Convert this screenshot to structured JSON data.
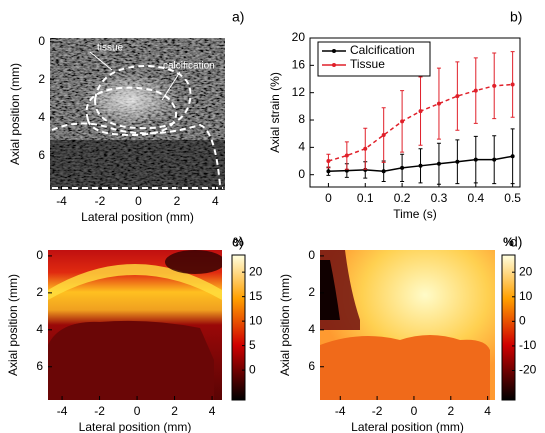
{
  "chart_data": [
    {
      "type": "image",
      "panel": "a)",
      "xlabel": "Lateral position (mm)",
      "ylabel": "Axial position (mm)",
      "xlim": [
        -4.6,
        4.5
      ],
      "xticks": [
        -4,
        -2,
        0,
        2,
        4
      ],
      "ylim": [
        -0.2,
        7.8
      ],
      "yticks": [
        0,
        2,
        4,
        6
      ],
      "yreverse": true,
      "annotations": [
        "tissue",
        "calcification"
      ]
    },
    {
      "type": "line",
      "panel": "b)",
      "xlabel": "Time (s)",
      "ylabel": "Axial strain (%)",
      "xlim": [
        -0.05,
        0.52
      ],
      "xticks": [
        0,
        0.1,
        0.2,
        0.3,
        0.4,
        0.5
      ],
      "ylim": [
        -1.8,
        20
      ],
      "yticks": [
        0,
        4,
        8,
        12,
        16,
        20
      ],
      "legend": "upper left",
      "x": [
        0,
        0.05,
        0.1,
        0.15,
        0.2,
        0.25,
        0.3,
        0.35,
        0.4,
        0.45,
        0.5
      ],
      "series": [
        {
          "name": "Calcification",
          "color": "#000000",
          "values": [
            0.5,
            0.6,
            0.7,
            0.5,
            1.0,
            1.3,
            1.6,
            1.9,
            2.2,
            2.2,
            2.7
          ],
          "errors": [
            0.6,
            1.0,
            1.2,
            1.5,
            2.0,
            2.5,
            3.0,
            3.2,
            3.4,
            3.5,
            4.0
          ]
        },
        {
          "name": "Tissue",
          "color": "#e0202a",
          "values": [
            2.0,
            2.8,
            3.8,
            5.8,
            7.8,
            9.3,
            10.4,
            11.5,
            12.3,
            13.0,
            13.2
          ],
          "errors": [
            1.0,
            2.0,
            3.0,
            4.0,
            4.5,
            5.0,
            5.2,
            5.0,
            4.8,
            4.8,
            4.8
          ]
        }
      ]
    },
    {
      "type": "heatmap",
      "panel": "c)",
      "xlabel": "Lateral position (mm)",
      "ylabel": "Axial position (mm)",
      "xlim": [
        -4.75,
        4.53
      ],
      "xticks": [
        -4,
        -2,
        0,
        2,
        4
      ],
      "ylim": [
        -0.32,
        7.8
      ],
      "yticks": [
        0,
        2,
        4,
        6
      ],
      "yreverse": true,
      "colorbar_label": "%",
      "clim": [
        -6.1,
        23.5
      ],
      "cticks": [
        0,
        5,
        10,
        15,
        20
      ]
    },
    {
      "type": "heatmap",
      "panel": "d)",
      "xlabel": "Lateral position (mm)",
      "ylabel": "Axial position (mm)",
      "xlim": [
        -5.1,
        4.4
      ],
      "xticks": [
        -4,
        -2,
        0,
        2,
        4
      ],
      "ylim": [
        -0.32,
        7.8
      ],
      "yticks": [
        0,
        2,
        4,
        6
      ],
      "yreverse": true,
      "colorbar_label": "%",
      "clim": [
        -32,
        27
      ],
      "cticks": [
        -20,
        -10,
        0,
        10,
        20
      ]
    }
  ]
}
